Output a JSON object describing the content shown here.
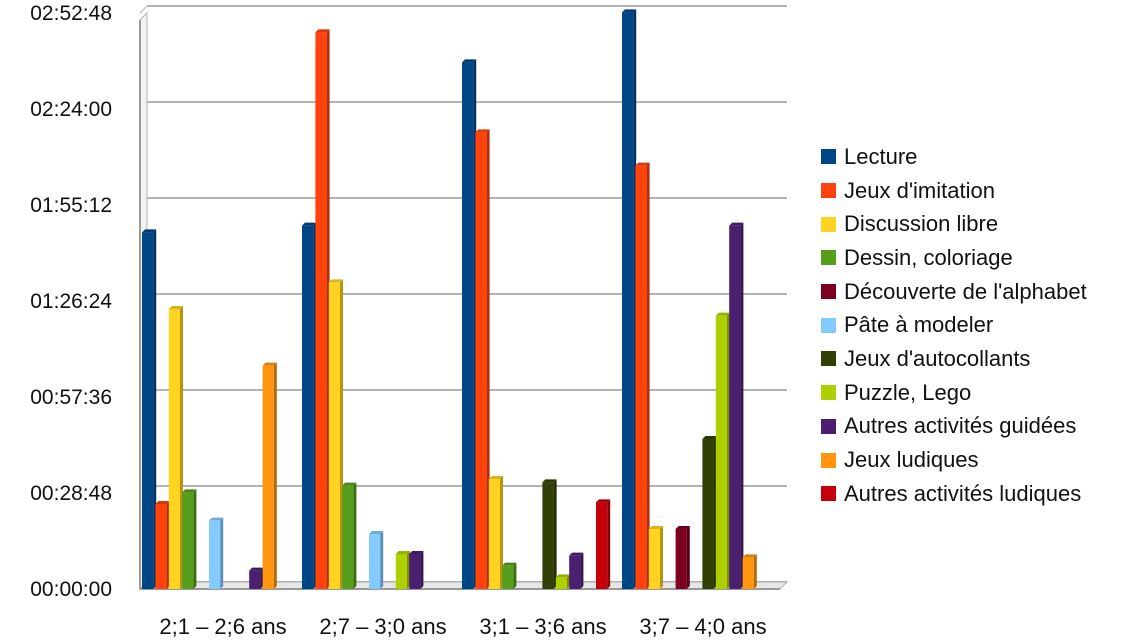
{
  "chart_data": {
    "type": "bar",
    "categories": [
      "2;1 – 2;6 ans",
      "2;7 – 3;0 ans",
      "3;1 – 3;6 ans",
      "3;7 – 4;0 ans"
    ],
    "y_axis": {
      "min_seconds": 0,
      "max_seconds": 10368,
      "step_seconds": 1728,
      "tick_labels": [
        "00:00:00",
        "00:28:48",
        "00:57:36",
        "01:26:24",
        "01:55:12",
        "02:24:00",
        "02:52:48"
      ]
    },
    "grid": true,
    "legend_position": "right",
    "series": [
      {
        "name": "Lecture",
        "color": "#004586",
        "values": [
          "01:47:00",
          "01:49:00",
          "02:38:00",
          "02:53:00"
        ]
      },
      {
        "name": "Jeux d'imitation",
        "color": "#ff420e",
        "values": [
          "00:25:30",
          "02:47:00",
          "02:17:00",
          "02:07:00"
        ]
      },
      {
        "name": "Discussion libre",
        "color": "#ffd320",
        "values": [
          "01:24:00",
          "01:32:00",
          "00:33:00",
          "00:18:00"
        ]
      },
      {
        "name": "Dessin, coloriage",
        "color": "#579d1c",
        "values": [
          "00:29:00",
          "00:31:00",
          "00:07:00",
          null
        ]
      },
      {
        "name": "Découverte de l'alphabet",
        "color": "#7e0021",
        "values": [
          null,
          null,
          null,
          "00:18:00"
        ]
      },
      {
        "name": "Pâte à modeler",
        "color": "#83caff",
        "values": [
          "00:20:30",
          "00:16:30",
          null,
          null
        ]
      },
      {
        "name": "Jeux d'autocollants",
        "color": "#314004",
        "values": [
          null,
          null,
          "00:32:00",
          "00:45:00"
        ]
      },
      {
        "name": "Puzzle, Lego",
        "color": "#aecf00",
        "values": [
          null,
          "00:10:30",
          "00:03:30",
          "01:22:00"
        ]
      },
      {
        "name": "Autres activités guidées",
        "color": "#4b1f6f",
        "values": [
          "00:05:30",
          "00:10:30",
          "00:10:00",
          "01:49:00"
        ]
      },
      {
        "name": "Jeux ludiques",
        "color": "#ff950e",
        "values": [
          "01:07:00",
          null,
          null,
          "00:09:30"
        ]
      },
      {
        "name": "Autres activités ludiques",
        "color": "#c5000b",
        "values": [
          null,
          null,
          "00:26:00",
          null
        ]
      }
    ]
  }
}
